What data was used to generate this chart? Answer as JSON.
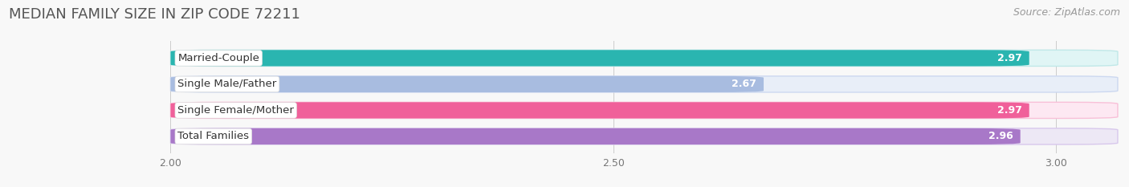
{
  "title": "MEDIAN FAMILY SIZE IN ZIP CODE 72211",
  "source": "Source: ZipAtlas.com",
  "categories": [
    "Married-Couple",
    "Single Male/Father",
    "Single Female/Mother",
    "Total Families"
  ],
  "values": [
    2.97,
    2.67,
    2.97,
    2.96
  ],
  "bar_colors": [
    "#2ab5b0",
    "#a8bce0",
    "#f0609a",
    "#a878c8"
  ],
  "bar_bg_colors": [
    "#e0f5f5",
    "#e8eef8",
    "#fde8f2",
    "#ede8f5"
  ],
  "bar_border_colors": [
    "#c0e8e8",
    "#ccd8f0",
    "#f8c0d8",
    "#d8c8ec"
  ],
  "xlim_start": 1.82,
  "xlim_end": 3.07,
  "xstart": 2.0,
  "xticks": [
    2.0,
    2.5,
    3.0
  ],
  "xtick_labels": [
    "2.00",
    "2.50",
    "3.00"
  ],
  "bar_height": 0.62,
  "label_fontsize": 9.5,
  "value_fontsize": 9,
  "title_fontsize": 13,
  "source_fontsize": 9
}
